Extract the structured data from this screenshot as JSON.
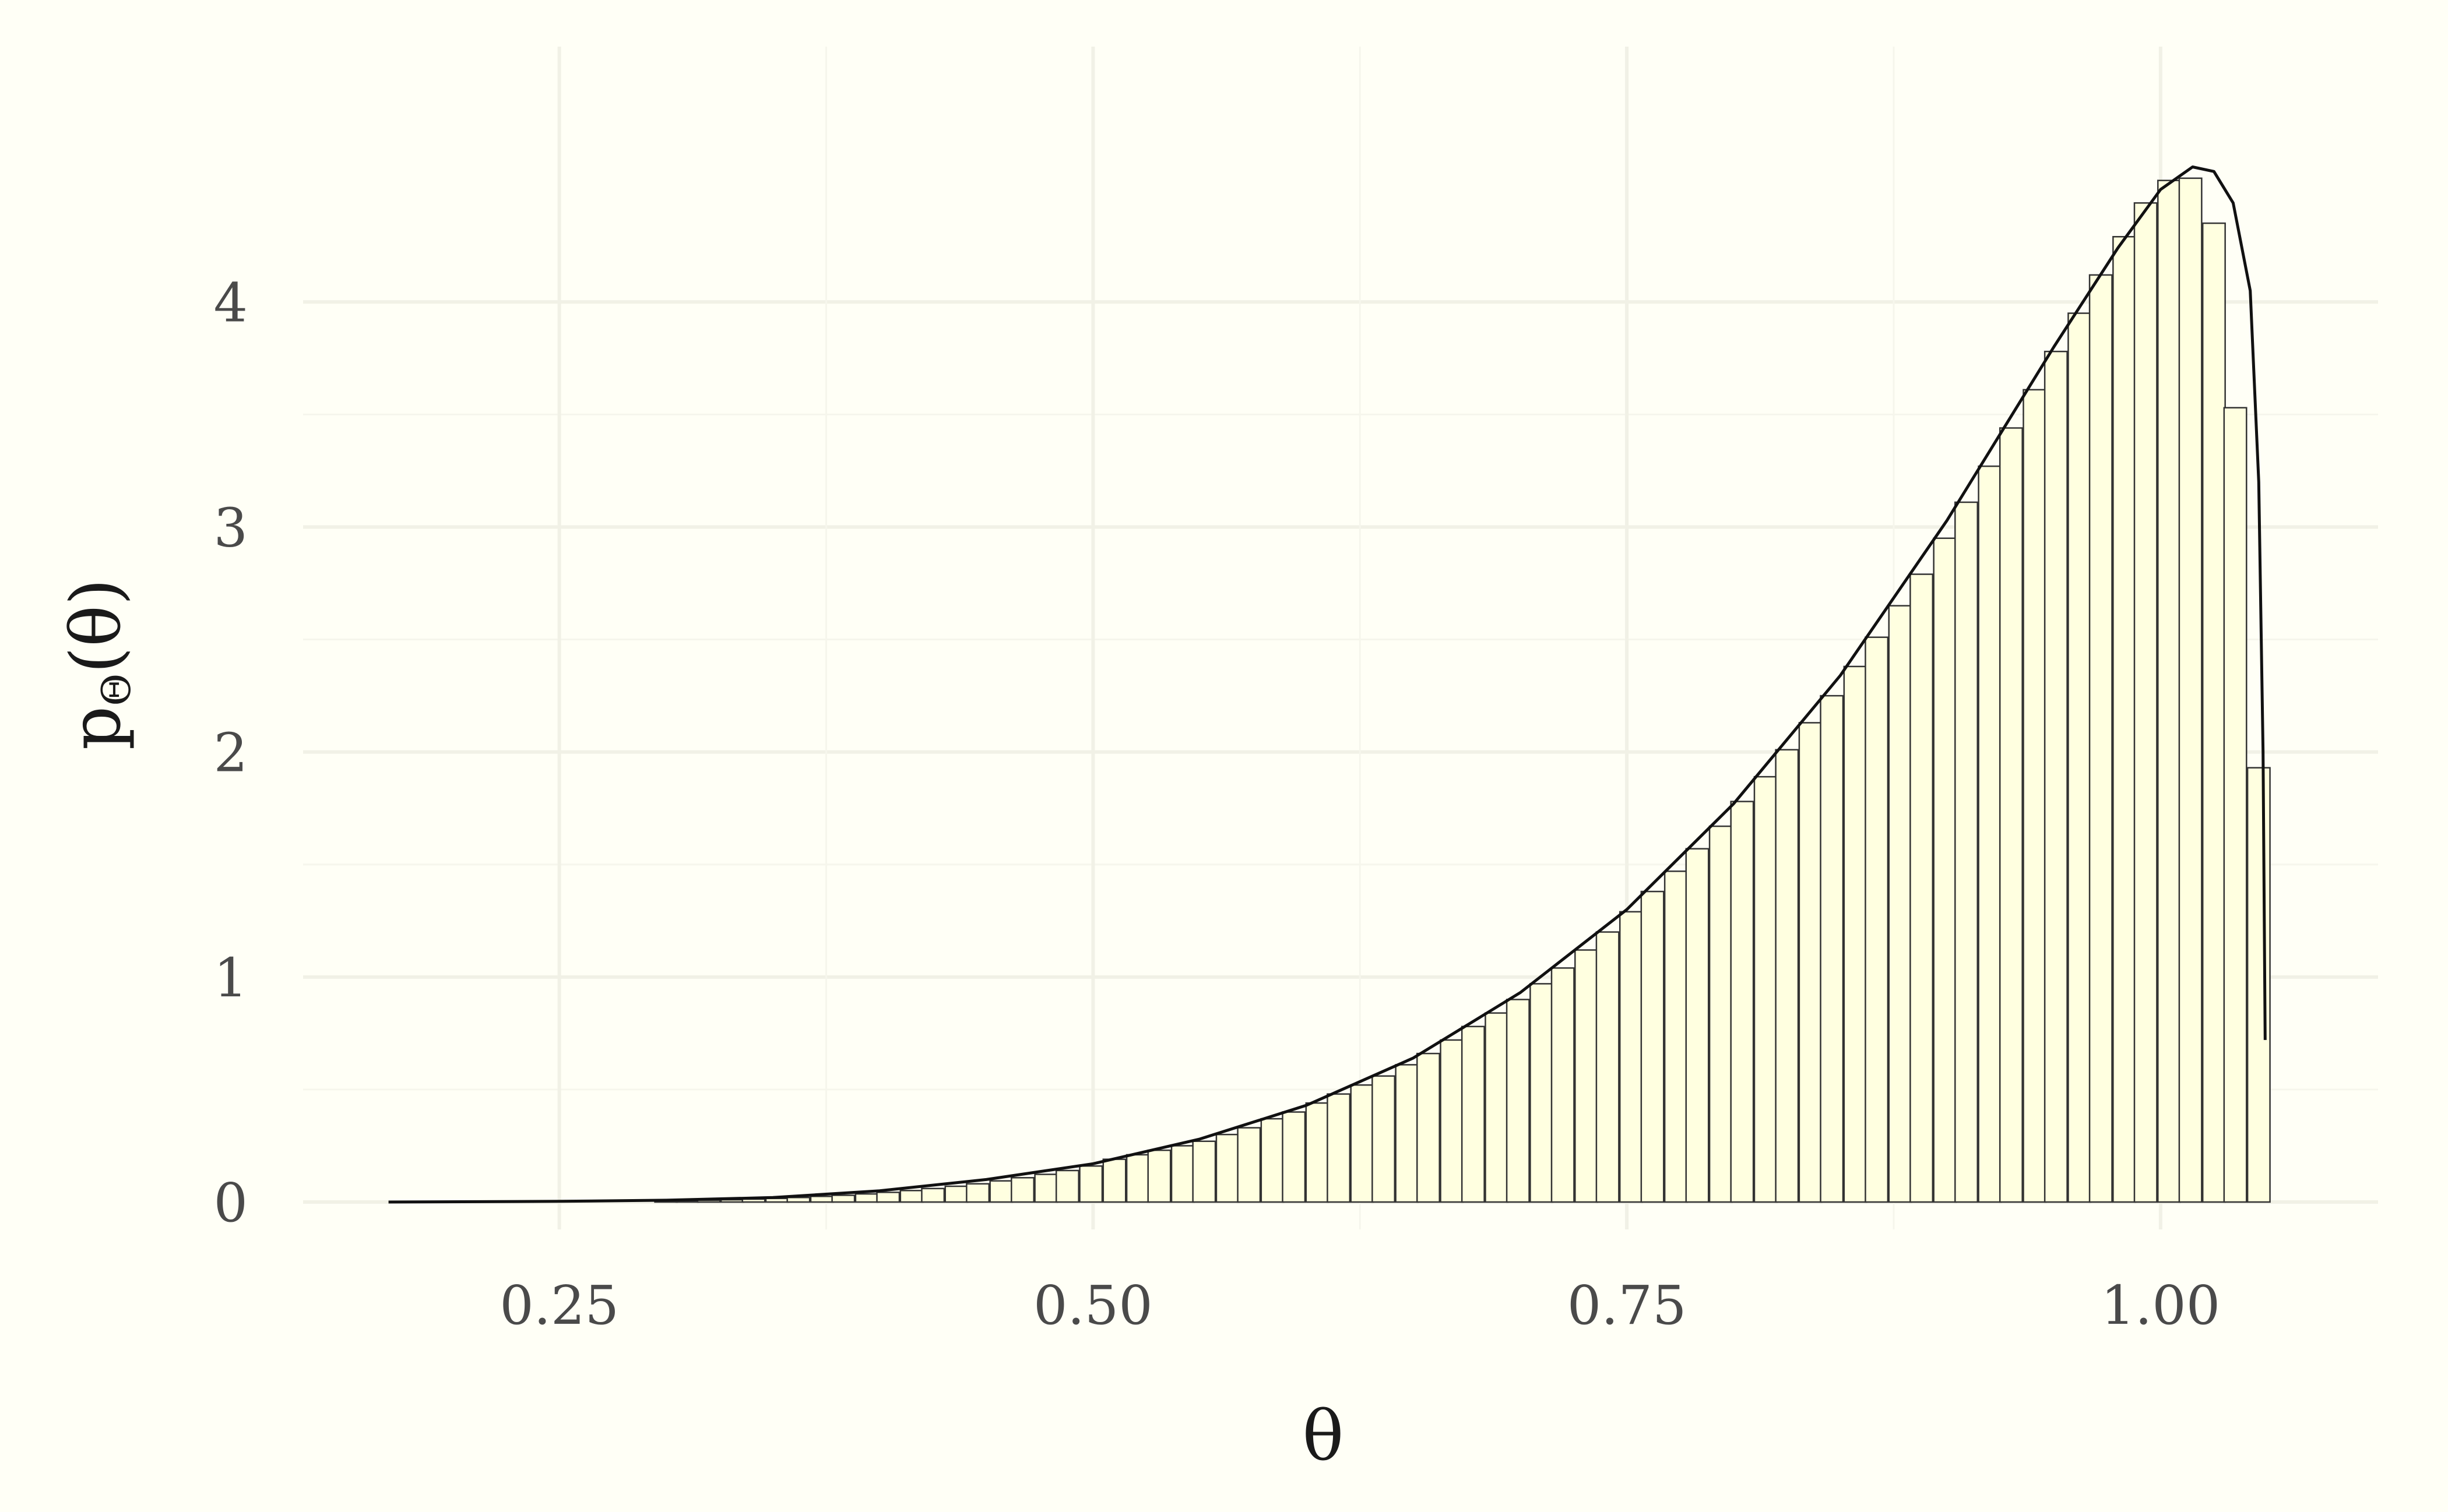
{
  "chart_data": {
    "type": "histogram",
    "xlabel": "θ",
    "ylabel_main": "p",
    "ylabel_sub": "Θ",
    "ylabel_suffix": "(θ)",
    "xlim": [
      0.16,
      1.05
    ],
    "ylim": [
      0,
      4.85
    ],
    "x_ticks": [
      0.25,
      0.5,
      0.75,
      1.0
    ],
    "x_tick_labels": [
      "0.25",
      "0.50",
      "0.75",
      "1.00"
    ],
    "y_ticks": [
      0,
      1,
      2,
      3,
      4
    ],
    "y_tick_labels": [
      "0",
      "1",
      "2",
      "3",
      "4"
    ],
    "grid": true,
    "legend": "none",
    "colors": {
      "background": "#fffff6",
      "bar_fill": "#ffffe0",
      "bar_stroke": "#333333",
      "curve": "#111111"
    },
    "histogram": {
      "bin_width": 0.0105,
      "bins": [
        {
          "x": 0.51,
          "y": 0.19
        },
        {
          "x": 0.521,
          "y": 0.21
        },
        {
          "x": 0.531,
          "y": 0.23
        },
        {
          "x": 0.542,
          "y": 0.25
        },
        {
          "x": 0.552,
          "y": 0.27
        },
        {
          "x": 0.563,
          "y": 0.3
        },
        {
          "x": 0.573,
          "y": 0.33
        },
        {
          "x": 0.584,
          "y": 0.37
        },
        {
          "x": 0.594,
          "y": 0.4
        },
        {
          "x": 0.605,
          "y": 0.44
        },
        {
          "x": 0.615,
          "y": 0.48
        },
        {
          "x": 0.626,
          "y": 0.52
        },
        {
          "x": 0.636,
          "y": 0.56
        },
        {
          "x": 0.647,
          "y": 0.61
        },
        {
          "x": 0.657,
          "y": 0.66
        },
        {
          "x": 0.668,
          "y": 0.72
        },
        {
          "x": 0.678,
          "y": 0.78
        },
        {
          "x": 0.689,
          "y": 0.84
        },
        {
          "x": 0.699,
          "y": 0.9
        },
        {
          "x": 0.71,
          "y": 0.97
        },
        {
          "x": 0.72,
          "y": 1.04
        },
        {
          "x": 0.731,
          "y": 1.12
        },
        {
          "x": 0.741,
          "y": 1.2
        },
        {
          "x": 0.752,
          "y": 1.29
        },
        {
          "x": 0.762,
          "y": 1.38
        },
        {
          "x": 0.773,
          "y": 1.47
        },
        {
          "x": 0.783,
          "y": 1.57
        },
        {
          "x": 0.794,
          "y": 1.67
        },
        {
          "x": 0.804,
          "y": 1.78
        },
        {
          "x": 0.815,
          "y": 1.89
        },
        {
          "x": 0.825,
          "y": 2.01
        },
        {
          "x": 0.836,
          "y": 2.13
        },
        {
          "x": 0.846,
          "y": 2.25
        },
        {
          "x": 0.857,
          "y": 2.38
        },
        {
          "x": 0.867,
          "y": 2.51
        },
        {
          "x": 0.878,
          "y": 2.65
        },
        {
          "x": 0.888,
          "y": 2.79
        },
        {
          "x": 0.899,
          "y": 2.95
        },
        {
          "x": 0.909,
          "y": 3.11
        },
        {
          "x": 0.92,
          "y": 3.27
        },
        {
          "x": 0.93,
          "y": 3.44
        },
        {
          "x": 0.941,
          "y": 3.61
        },
        {
          "x": 0.951,
          "y": 3.78
        },
        {
          "x": 0.962,
          "y": 3.95
        },
        {
          "x": 0.972,
          "y": 4.12
        },
        {
          "x": 0.983,
          "y": 4.29
        },
        {
          "x": 0.993,
          "y": 4.44
        },
        {
          "x": 1.004,
          "y": 4.54
        },
        {
          "x": 1.014,
          "y": 4.55
        },
        {
          "x": 1.025,
          "y": 4.35
        },
        {
          "x": 1.035,
          "y": 3.53
        },
        {
          "x": 1.046,
          "y": 1.93
        }
      ],
      "low_bins": [
        {
          "x": 0.3,
          "y": 0.005
        },
        {
          "x": 0.31,
          "y": 0.006
        },
        {
          "x": 0.32,
          "y": 0.008
        },
        {
          "x": 0.331,
          "y": 0.01
        },
        {
          "x": 0.341,
          "y": 0.013
        },
        {
          "x": 0.352,
          "y": 0.016
        },
        {
          "x": 0.362,
          "y": 0.02
        },
        {
          "x": 0.373,
          "y": 0.025
        },
        {
          "x": 0.383,
          "y": 0.03
        },
        {
          "x": 0.394,
          "y": 0.036
        },
        {
          "x": 0.404,
          "y": 0.043
        },
        {
          "x": 0.415,
          "y": 0.051
        },
        {
          "x": 0.425,
          "y": 0.06
        },
        {
          "x": 0.436,
          "y": 0.07
        },
        {
          "x": 0.446,
          "y": 0.081
        },
        {
          "x": 0.457,
          "y": 0.094
        },
        {
          "x": 0.467,
          "y": 0.108
        },
        {
          "x": 0.478,
          "y": 0.123
        },
        {
          "x": 0.488,
          "y": 0.14
        },
        {
          "x": 0.499,
          "y": 0.16
        }
      ]
    },
    "density_curve": [
      [
        0.17,
        0.0
      ],
      [
        0.25,
        0.003
      ],
      [
        0.3,
        0.008
      ],
      [
        0.35,
        0.02
      ],
      [
        0.4,
        0.05
      ],
      [
        0.45,
        0.1
      ],
      [
        0.5,
        0.17
      ],
      [
        0.55,
        0.28
      ],
      [
        0.6,
        0.43
      ],
      [
        0.65,
        0.64
      ],
      [
        0.7,
        0.93
      ],
      [
        0.75,
        1.3
      ],
      [
        0.8,
        1.77
      ],
      [
        0.85,
        2.34
      ],
      [
        0.9,
        3.03
      ],
      [
        0.95,
        3.8
      ],
      [
        0.98,
        4.24
      ],
      [
        1.0,
        4.5
      ],
      [
        1.015,
        4.6
      ],
      [
        1.025,
        4.58
      ],
      [
        1.034,
        4.44
      ],
      [
        1.042,
        4.05
      ],
      [
        1.046,
        3.2
      ],
      [
        1.048,
        2.0
      ],
      [
        1.049,
        0.72
      ]
    ]
  }
}
